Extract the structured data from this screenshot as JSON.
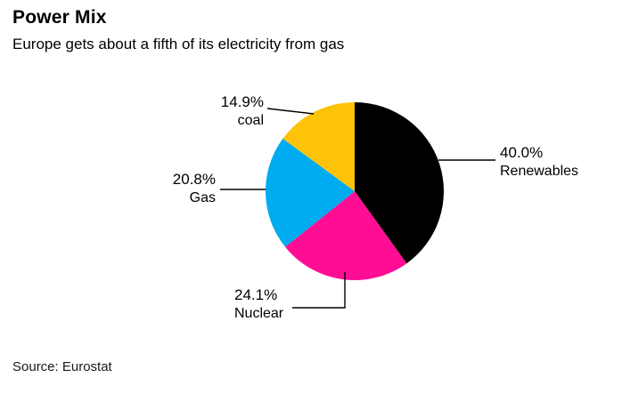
{
  "chart_data": {
    "type": "pie",
    "title": "Power Mix",
    "subtitle": "Europe gets about a fifth of its electricity from gas",
    "source": "Source: Eurostat",
    "start_angle_deg": 0,
    "direction": "clockwise",
    "legend_position": "callout-labels",
    "slices": [
      {
        "label": "Renewables",
        "value": 40.0,
        "display": "40.0%",
        "color": "#000000"
      },
      {
        "label": "Nuclear",
        "value": 24.1,
        "display": "24.1%",
        "color": "#ff0d94"
      },
      {
        "label": "Gas",
        "value": 20.8,
        "display": "20.8%",
        "color": "#00abf0"
      },
      {
        "label": "coal",
        "value": 14.9,
        "display": "14.9%",
        "color": "#fdc309"
      }
    ]
  }
}
